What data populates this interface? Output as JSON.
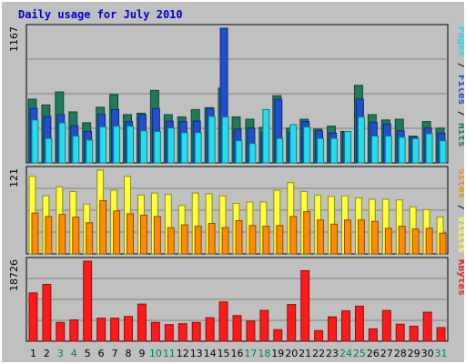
{
  "chart_data": {
    "type": "bar",
    "title": "Daily usage for July 2010",
    "categories": [
      "1",
      "2",
      "3",
      "4",
      "5",
      "6",
      "7",
      "8",
      "9",
      "10",
      "11",
      "12",
      "13",
      "14",
      "15",
      "16",
      "17",
      "18",
      "19",
      "20",
      "21",
      "22",
      "23",
      "24",
      "25",
      "26",
      "27",
      "28",
      "29",
      "30",
      "31"
    ],
    "weekend_days": [
      "3",
      "4",
      "10",
      "11",
      "17",
      "18",
      "24",
      "25",
      "31"
    ],
    "colors": {
      "hits": "#1e7a5a",
      "files": "#1f4fcf",
      "pages": "#22ddee",
      "visits": "#ffff33",
      "sites": "#ff8c00",
      "kbytes": "#ff1a1a",
      "weekday_label": "#000000",
      "weekend_label": "#008060",
      "title": "#0000cc",
      "panel_bg": "#c0c0c0",
      "grid": "#808080"
    },
    "panels": [
      {
        "name": "pages-files-hits",
        "max_label": "1167",
        "max": 1167,
        "right_label_parts": [
          {
            "text": "Pages",
            "color": "#22ddee"
          },
          {
            "text": " / ",
            "color": "#000000"
          },
          {
            "text": "Files",
            "color": "#1f4fcf"
          },
          {
            "text": " / ",
            "color": "#000000"
          },
          {
            "text": "Hits",
            "color": "#1e7a5a"
          }
        ],
        "series": [
          {
            "name": "Hits",
            "color": "#1e7a5a",
            "values": [
              552,
              502,
              615,
              442,
              348,
              482,
              592,
              418,
              430,
              628,
              418,
              398,
              462,
              478,
              648,
              398,
              378,
              308,
              582,
              302,
              378,
              292,
              318,
              272,
              672,
              418,
              372,
              378,
              232,
              358,
              302
            ]
          },
          {
            "name": "Files",
            "color": "#1f4fcf",
            "values": [
              472,
              402,
              418,
              322,
              272,
              422,
              462,
              358,
              418,
              472,
              362,
              358,
              362,
              472,
              1167,
              292,
              302,
              262,
              552,
              262,
              358,
              278,
              258,
              272,
              552,
              352,
              338,
              278,
              222,
              302,
              258
            ]
          },
          {
            "name": "Pages",
            "color": "#22ddee",
            "values": [
              372,
              212,
              348,
              232,
              198,
              312,
              318,
              318,
              278,
              272,
              302,
              262,
              262,
              402,
              398,
              192,
              168,
              462,
              212,
              332,
              312,
              212,
              212,
              272,
              398,
              232,
              232,
              222,
              212,
              252,
              192
            ]
          }
        ]
      },
      {
        "name": "visits-sites",
        "max_label": "121",
        "max": 121,
        "right_label_parts": [
          {
            "text": "Sites",
            "color": "#ff8c00"
          },
          {
            "text": " / ",
            "color": "#000000"
          },
          {
            "text": "Visits",
            "color": "#ffff33"
          }
        ],
        "series": [
          {
            "name": "Visits",
            "color": "#ffff33",
            "values": [
              112,
              84,
              97,
              90,
              72,
              121,
              92,
              112,
              85,
              88,
              86,
              70,
              88,
              87,
              84,
              73,
              75,
              75,
              92,
              103,
              90,
              85,
              83,
              84,
              81,
              79,
              79,
              78,
              68,
              64,
              53
            ]
          },
          {
            "name": "Sites",
            "color": "#ff8c00",
            "values": [
              59,
              54,
              57,
              53,
              45,
              77,
              62,
              58,
              56,
              54,
              38,
              42,
              40,
              44,
              38,
              48,
              41,
              40,
              41,
              54,
              61,
              49,
              43,
              49,
              49,
              47,
              37,
              40,
              36,
              37,
              30
            ]
          }
        ]
      },
      {
        "name": "kbytes",
        "max_label": "18726",
        "max": 18726,
        "right_label_parts": [
          {
            "text": "KBytes",
            "color": "#ff1a1a"
          }
        ],
        "series": [
          {
            "name": "KBytes",
            "color": "#ff1a1a",
            "values": [
              11300,
              13300,
              4400,
              5000,
              18726,
              5400,
              5400,
              5800,
              8700,
              4400,
              3900,
              4100,
              4400,
              5500,
              9200,
              6000,
              4700,
              7200,
              2700,
              8600,
              16500,
              2500,
              5700,
              7100,
              8200,
              2900,
              7200,
              4000,
              3500,
              6800,
              3200
            ]
          }
        ]
      }
    ]
  }
}
